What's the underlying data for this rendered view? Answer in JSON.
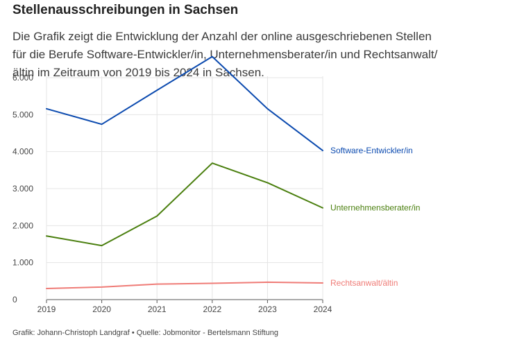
{
  "header": {
    "title": "Stellenausschreibungen in Sachsen",
    "subtitle": "Die Grafik zeigt die Entwicklung der Anzahl der online ausgeschriebenen Stellen für die Berufe Software-Entwickler/in, Unternehmensberater/in und Rechtsanwalt/ältin im Zeitraum von 2019 bis 2024 in Sachsen."
  },
  "footer": {
    "credit": "Grafik: Johann-Christoph Landgraf • Quelle: Jobmonitor - Bertelsmann Stiftung"
  },
  "chart_data": {
    "type": "line",
    "x": [
      "2019",
      "2020",
      "2021",
      "2022",
      "2023",
      "2024"
    ],
    "ylim": [
      0,
      6000
    ],
    "yticks": [
      0,
      1000,
      2000,
      3000,
      4000,
      5000,
      6000
    ],
    "ytick_labels": [
      "0",
      "1.000",
      "2.000",
      "3.000",
      "4.000",
      "5.000",
      "6.000"
    ],
    "grid": true,
    "legend": "direct labels at line ends",
    "series": [
      {
        "name": "Software-Entwickler/in",
        "color": "#0b4aaf",
        "values": [
          5160,
          4740,
          5660,
          6570,
          5160,
          4030
        ]
      },
      {
        "name": "Unternehmensberater/in",
        "color": "#4a7f0e",
        "values": [
          1720,
          1460,
          2260,
          3690,
          3160,
          2480
        ]
      },
      {
        "name": "Rechtsanwalt/ältin",
        "color": "#ef7b76",
        "values": [
          300,
          340,
          420,
          440,
          470,
          450
        ]
      }
    ]
  }
}
